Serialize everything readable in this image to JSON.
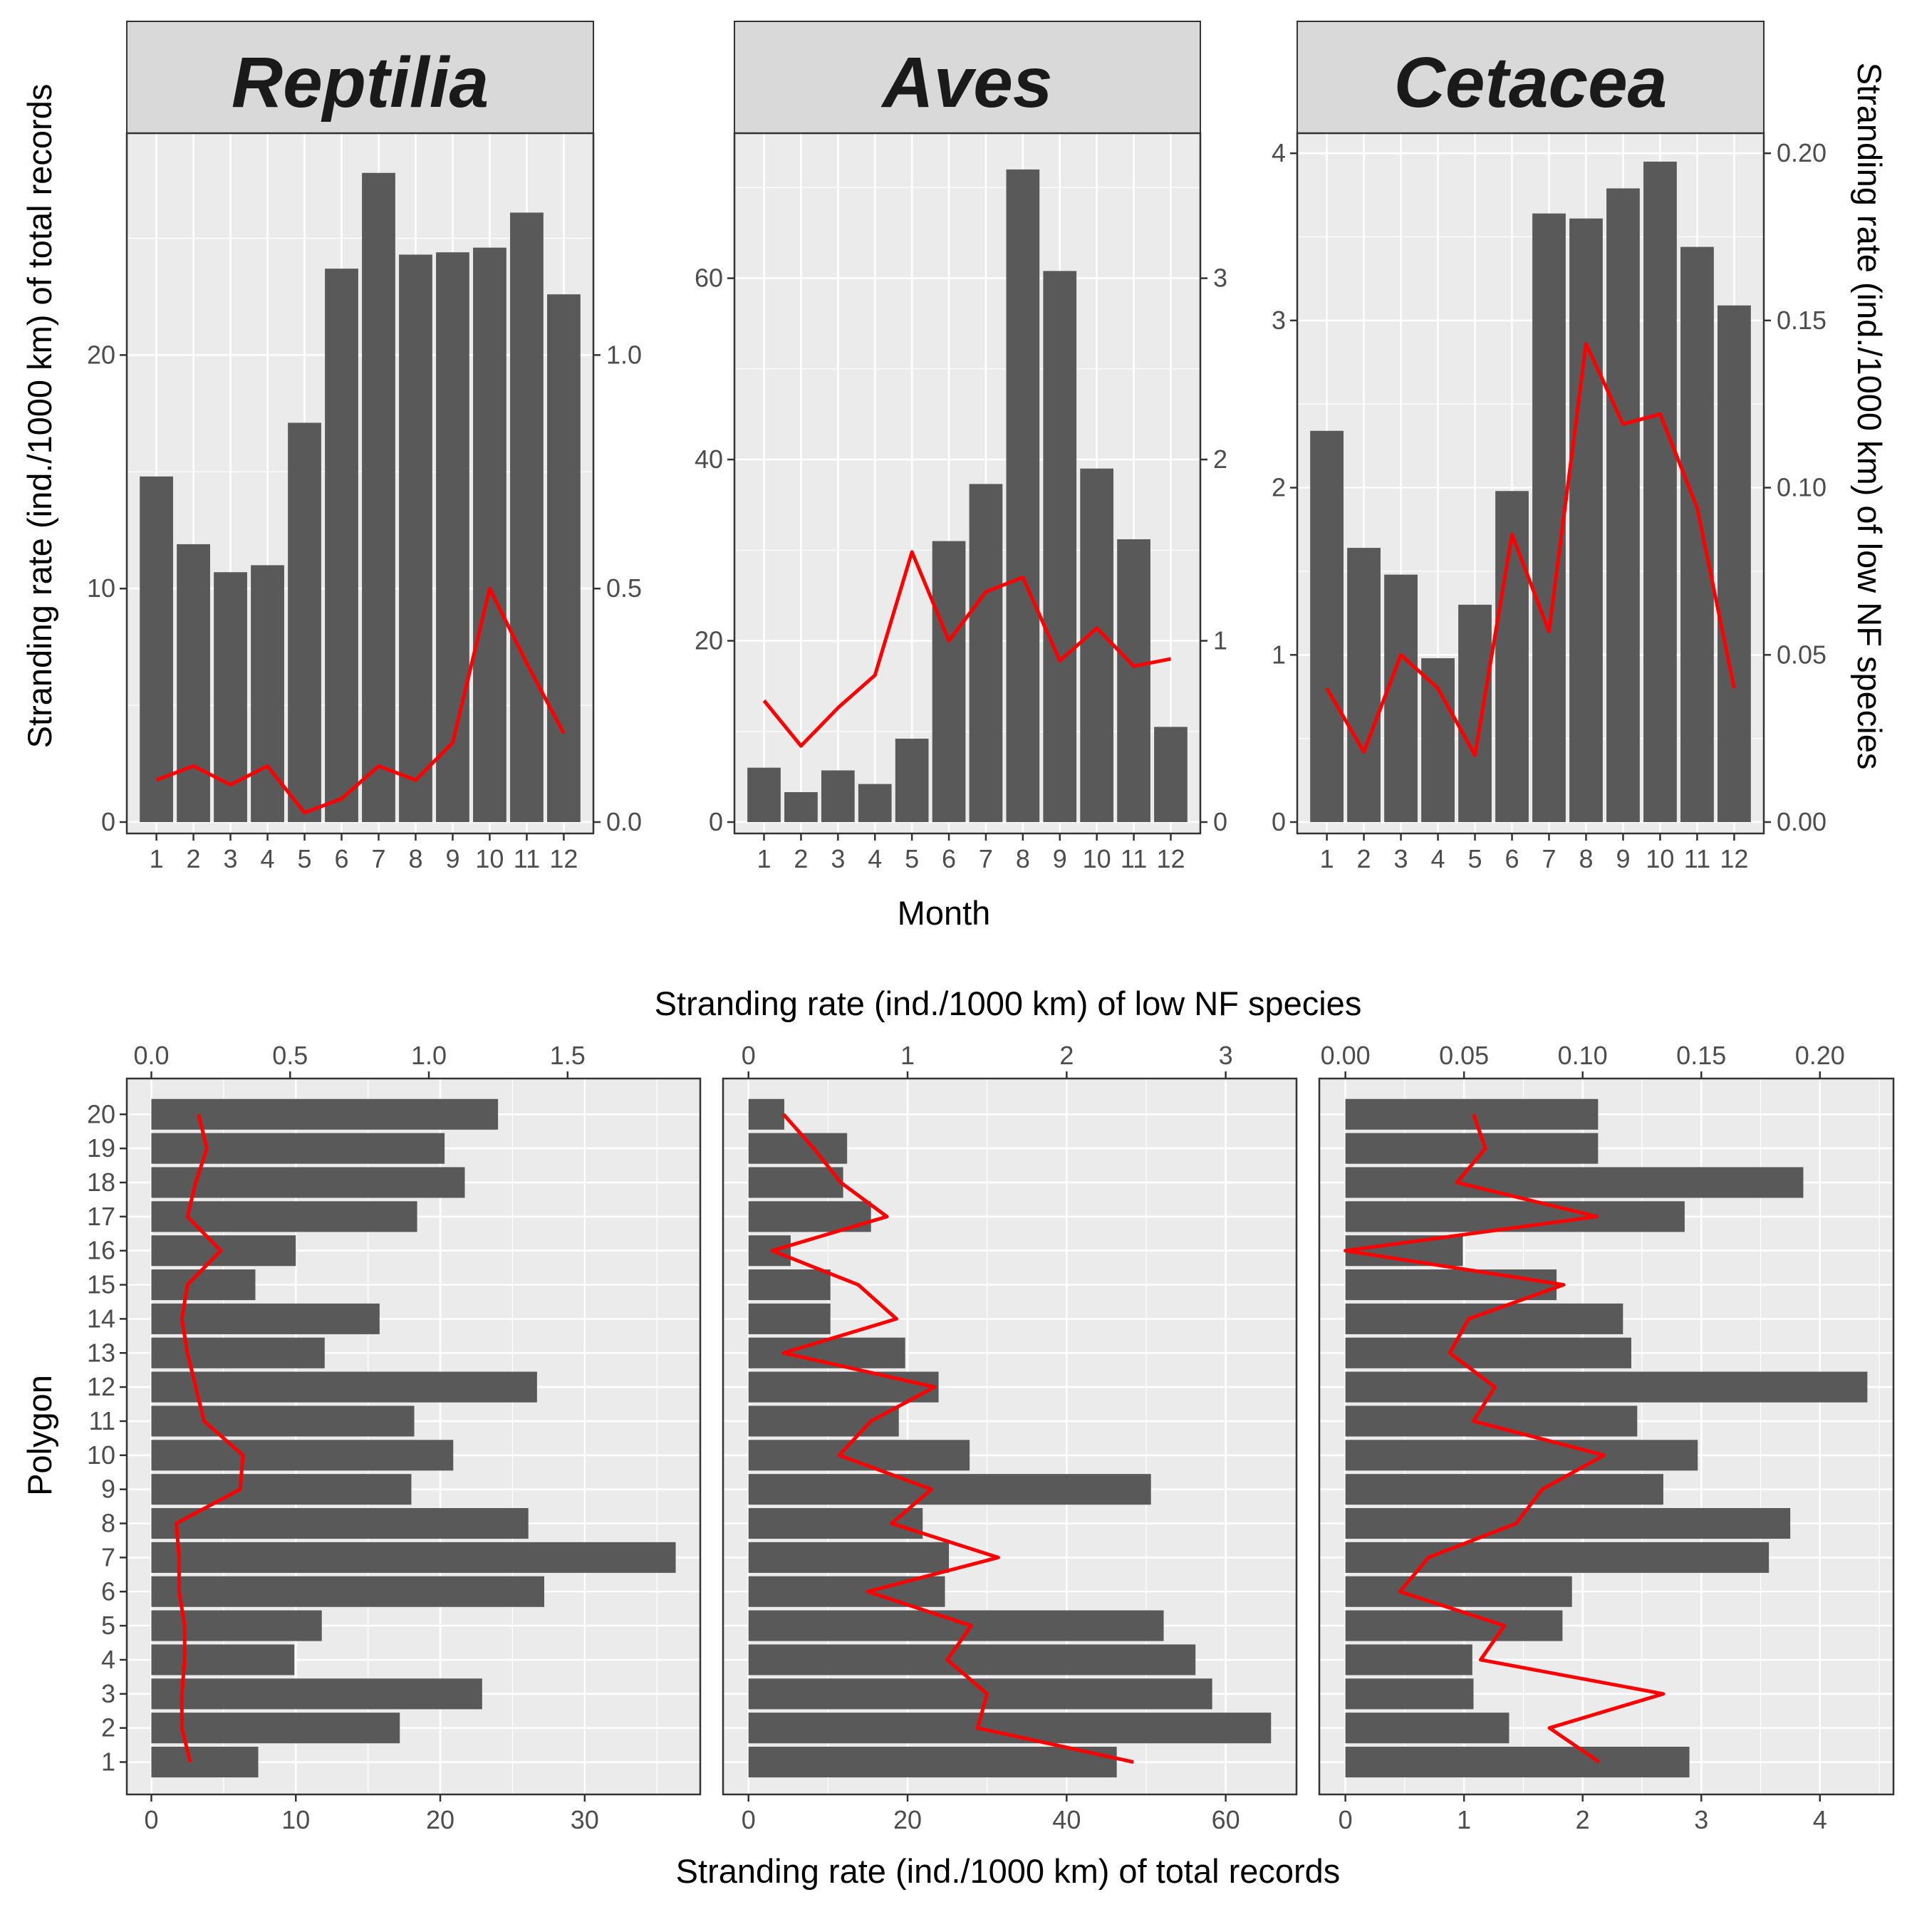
{
  "colors": {
    "bar": "#595959",
    "line": "#ff0000",
    "panel": "#ebebeb",
    "grid": "#ffffff",
    "strip": "#d9d9d9"
  },
  "chart_data": [
    {
      "type": "bar",
      "title": "Reptilia",
      "categories": [
        "1",
        "2",
        "3",
        "4",
        "5",
        "6",
        "7",
        "8",
        "9",
        "10",
        "11",
        "12"
      ],
      "series": [
        {
          "name": "total records",
          "axis": "left",
          "values": [
            14.8,
            11.9,
            10.7,
            11.0,
            17.1,
            23.7,
            27.8,
            24.3,
            24.4,
            24.6,
            26.1,
            22.6
          ]
        },
        {
          "name": "low NF species",
          "axis": "right",
          "type": "line",
          "values": [
            0.09,
            0.12,
            0.08,
            0.12,
            0.02,
            0.05,
            0.12,
            0.09,
            0.17,
            0.5,
            0.34,
            0.19
          ]
        }
      ],
      "xlabel": "",
      "ylabel": "Stranding rate (ind./1000 km) of total records",
      "ylim": [
        0,
        29.5
      ],
      "yticks": [
        "0",
        "10",
        "20"
      ],
      "y2lim": [
        0,
        1.475
      ],
      "y2ticks": [
        "0.0",
        "0.5",
        "1.0"
      ]
    },
    {
      "type": "bar",
      "title": "Aves",
      "categories": [
        "1",
        "2",
        "3",
        "4",
        "5",
        "6",
        "7",
        "8",
        "9",
        "10",
        "11",
        "12"
      ],
      "series": [
        {
          "name": "total records",
          "axis": "left",
          "values": [
            6.0,
            3.3,
            5.7,
            4.2,
            9.2,
            31.0,
            37.3,
            72.0,
            60.8,
            39.0,
            31.2,
            10.5
          ]
        },
        {
          "name": "low NF species",
          "axis": "right",
          "type": "line",
          "values": [
            0.67,
            0.42,
            0.63,
            0.81,
            1.49,
            1.0,
            1.27,
            1.35,
            0.89,
            1.07,
            0.86,
            0.9
          ]
        }
      ],
      "xlabel": "Month",
      "ylabel": "",
      "ylim": [
        0,
        76
      ],
      "yticks": [
        "0",
        "20",
        "40",
        "60"
      ],
      "y2lim": [
        0,
        3.8
      ],
      "y2ticks": [
        "0",
        "1",
        "2",
        "3"
      ]
    },
    {
      "type": "bar",
      "title": "Cetacea",
      "categories": [
        "1",
        "2",
        "3",
        "4",
        "5",
        "6",
        "7",
        "8",
        "9",
        "10",
        "11",
        "12"
      ],
      "series": [
        {
          "name": "total records",
          "axis": "left",
          "values": [
            2.34,
            1.64,
            1.48,
            0.98,
            1.3,
            1.98,
            3.64,
            3.61,
            3.79,
            3.95,
            3.44,
            3.09
          ]
        },
        {
          "name": "low NF species",
          "axis": "right",
          "type": "line",
          "values": [
            0.04,
            0.021,
            0.05,
            0.04,
            0.02,
            0.086,
            0.057,
            0.143,
            0.119,
            0.122,
            0.094,
            0.04
          ]
        }
      ],
      "xlabel": "",
      "ylabel": "Stranding rate (ind./1000 km) of low NF species",
      "ylim": [
        0,
        4.12
      ],
      "yticks": [
        "0",
        "1",
        "2",
        "3",
        "4"
      ],
      "y2lim": [
        0,
        0.206
      ],
      "y2ticks": [
        "0.00",
        "0.05",
        "0.10",
        "0.15",
        "0.20"
      ]
    },
    {
      "type": "bar",
      "orientation": "horizontal",
      "title": "",
      "categories": [
        "1",
        "2",
        "3",
        "4",
        "5",
        "6",
        "7",
        "8",
        "9",
        "10",
        "11",
        "12",
        "13",
        "14",
        "15",
        "16",
        "17",
        "18",
        "19",
        "20"
      ],
      "series": [
        {
          "name": "total records",
          "axis": "bottom",
          "values": [
            7.4,
            17.2,
            22.9,
            9.9,
            11.8,
            27.2,
            36.3,
            26.1,
            18.0,
            20.9,
            18.2,
            26.7,
            12.0,
            15.8,
            7.2,
            10.0,
            18.4,
            21.7,
            20.3,
            24.0
          ]
        },
        {
          "name": "low NF species",
          "axis": "top",
          "type": "line",
          "values": [
            0.14,
            0.11,
            0.11,
            0.12,
            0.12,
            0.1,
            0.1,
            0.09,
            0.32,
            0.33,
            0.19,
            0.16,
            0.13,
            0.11,
            0.13,
            0.25,
            0.13,
            0.16,
            0.2,
            0.17
          ]
        }
      ],
      "xlabel": "",
      "ylabel": "Polygon",
      "xlim": [
        -1.7,
        38
      ],
      "xticks": [
        "0",
        "10",
        "20",
        "30"
      ],
      "x2lim": [
        -0.0885,
        1.978
      ],
      "x2ticks": [
        "0.0",
        "0.5",
        "1.0",
        "1.5"
      ]
    },
    {
      "type": "bar",
      "orientation": "horizontal",
      "title": "",
      "categories": [
        "1",
        "2",
        "3",
        "4",
        "5",
        "6",
        "7",
        "8",
        "9",
        "10",
        "11",
        "12",
        "13",
        "14",
        "15",
        "16",
        "17",
        "18",
        "19",
        "20"
      ],
      "series": [
        {
          "name": "total records",
          "axis": "bottom",
          "values": [
            46.3,
            65.7,
            58.3,
            56.2,
            52.2,
            24.7,
            25.2,
            21.9,
            50.6,
            27.8,
            18.9,
            23.9,
            19.7,
            10.3,
            10.3,
            5.3,
            15.4,
            11.9,
            12.4,
            4.5
          ]
        },
        {
          "name": "low NF species",
          "axis": "top",
          "type": "line",
          "values": [
            2.42,
            1.44,
            1.5,
            1.25,
            1.4,
            0.75,
            1.57,
            0.9,
            1.15,
            0.57,
            0.77,
            1.17,
            0.22,
            0.93,
            0.69,
            0.15,
            0.87,
            0.58,
            0.41,
            0.22
          ]
        }
      ],
      "xlabel": "Stranding rate (ind./1000 km) of total records",
      "ylabel": "",
      "xlim": [
        -3.2,
        68.9
      ],
      "xticks": [
        "0",
        "20",
        "40",
        "60"
      ],
      "x2lim": [
        -0.16,
        3.445
      ],
      "x2ticks": [
        "0",
        "1",
        "2",
        "3"
      ]
    },
    {
      "type": "bar",
      "orientation": "horizontal",
      "title": "",
      "categories": [
        "1",
        "2",
        "3",
        "4",
        "5",
        "6",
        "7",
        "8",
        "9",
        "10",
        "11",
        "12",
        "13",
        "14",
        "15",
        "16",
        "17",
        "18",
        "19",
        "20"
      ],
      "series": [
        {
          "name": "total records",
          "axis": "bottom",
          "values": [
            2.9,
            1.38,
            1.08,
            1.07,
            1.83,
            1.91,
            3.57,
            3.75,
            2.68,
            2.97,
            2.46,
            4.4,
            2.41,
            2.34,
            1.78,
            0.99,
            2.86,
            3.86,
            2.13,
            2.13
          ]
        },
        {
          "name": "low NF species",
          "axis": "top",
          "type": "line",
          "values": [
            0.107,
            0.086,
            0.134,
            0.057,
            0.067,
            0.023,
            0.035,
            0.072,
            0.083,
            0.109,
            0.054,
            0.063,
            0.044,
            0.052,
            0.092,
            0.0,
            0.106,
            0.047,
            0.059,
            0.054
          ]
        }
      ],
      "xlabel": "",
      "ylabel": "",
      "xlim": [
        -0.22,
        4.62
      ],
      "xticks": [
        "0",
        "1",
        "2",
        "3",
        "4"
      ],
      "x2lim": [
        -0.011,
        0.231
      ],
      "x2ticks": [
        "0.00",
        "0.05",
        "0.10",
        "0.15",
        "0.20"
      ]
    }
  ],
  "shared_labels": {
    "top_xlabel": "Month",
    "left_ylabel": "Stranding rate (ind./1000 km) of total records",
    "right_ylabel": "Stranding rate (ind./1000 km) of low NF species",
    "bottom_top_xlabel": "Stranding rate (ind./1000 km) of low NF species",
    "bottom_xlabel": "Stranding rate (ind./1000 km) of total records",
    "polygon_ylabel": "Polygon"
  }
}
